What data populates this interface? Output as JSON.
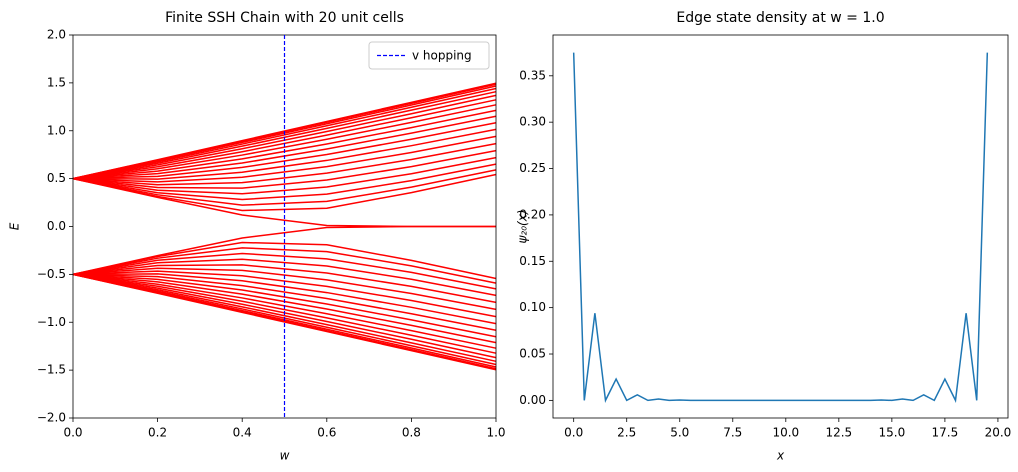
{
  "chart_data": [
    {
      "type": "line",
      "title": "Finite SSH Chain with 20 unit cells",
      "xlabel": "w",
      "ylabel": "E",
      "color": "#ff0000",
      "x": [
        0,
        0.2,
        0.4,
        0.6,
        0.8,
        1.0
      ],
      "xlim": [
        0,
        1
      ],
      "ylim": [
        -2,
        2
      ],
      "xticks": [
        {
          "value": 0,
          "label": "0.0"
        },
        {
          "value": 0.2,
          "label": "0.2"
        },
        {
          "value": 0.4,
          "label": "0.4"
        },
        {
          "value": 0.6,
          "label": "0.6"
        },
        {
          "value": 0.8,
          "label": "0.8"
        },
        {
          "value": 1,
          "label": "1.0"
        }
      ],
      "yticks": [
        {
          "value": -2,
          "label": "−2.0"
        },
        {
          "value": -1.5,
          "label": "−1.5"
        },
        {
          "value": -1,
          "label": "−1.0"
        },
        {
          "value": -0.5,
          "label": "−0.5"
        },
        {
          "value": 0,
          "label": "0.0"
        },
        {
          "value": 0.5,
          "label": "0.5"
        },
        {
          "value": 1,
          "label": "1.0"
        },
        {
          "value": 1.5,
          "label": "1.5"
        },
        {
          "value": 2,
          "label": "2.0"
        }
      ],
      "vline": {
        "x": 0.5,
        "label": "v hopping",
        "color": "#0000ff"
      },
      "legend": "upper right",
      "series": [
        {
          "values": [
            0.5,
            0.698,
            0.897,
            1.097,
            1.297,
            1.496
          ]
        },
        {
          "values": [
            0.5,
            0.694,
            0.89,
            1.088,
            1.286,
            1.485
          ]
        },
        {
          "values": [
            0.5,
            0.686,
            0.878,
            1.073,
            1.269,
            1.467
          ]
        },
        {
          "values": [
            0.5,
            0.675,
            0.861,
            1.052,
            1.245,
            1.441
          ]
        },
        {
          "values": [
            0.5,
            0.661,
            0.839,
            1.025,
            1.215,
            1.408
          ]
        },
        {
          "values": [
            0.5,
            0.644,
            0.812,
            0.992,
            1.178,
            1.369
          ]
        },
        {
          "values": [
            0.5,
            0.624,
            0.781,
            0.954,
            1.136,
            1.323
          ]
        },
        {
          "values": [
            0.5,
            0.603,
            0.746,
            0.911,
            1.087,
            1.271
          ]
        },
        {
          "values": [
            0.5,
            0.578,
            0.706,
            0.862,
            1.033,
            1.213
          ]
        },
        {
          "values": [
            0.5,
            0.552,
            0.663,
            0.809,
            0.975,
            1.151
          ]
        },
        {
          "values": [
            0.5,
            0.524,
            0.617,
            0.752,
            0.911,
            1.084
          ]
        },
        {
          "values": [
            0.5,
            0.495,
            0.567,
            0.69,
            0.844,
            1.014
          ]
        },
        {
          "values": [
            0.5,
            0.466,
            0.514,
            0.625,
            0.773,
            0.941
          ]
        },
        {
          "values": [
            0.5,
            0.436,
            0.458,
            0.557,
            0.7,
            0.866
          ]
        },
        {
          "values": [
            0.5,
            0.407,
            0.401,
            0.486,
            0.625,
            0.792
          ]
        },
        {
          "values": [
            0.5,
            0.379,
            0.342,
            0.412,
            0.551,
            0.719
          ]
        },
        {
          "values": [
            0.5,
            0.353,
            0.282,
            0.338,
            0.479,
            0.651
          ]
        },
        {
          "values": [
            0.5,
            0.331,
            0.223,
            0.263,
            0.411,
            0.591
          ]
        },
        {
          "values": [
            0.5,
            0.314,
            0.167,
            0.191,
            0.354,
            0.543
          ]
        },
        {
          "values": [
            0.5,
            0.304,
            0.12,
            0.01,
            0,
            0
          ]
        },
        {
          "values": [
            -0.5,
            -0.304,
            -0.12,
            -0.01,
            0,
            0
          ]
        },
        {
          "values": [
            -0.5,
            -0.314,
            -0.167,
            -0.191,
            -0.354,
            -0.543
          ]
        },
        {
          "values": [
            -0.5,
            -0.331,
            -0.223,
            -0.263,
            -0.411,
            -0.591
          ]
        },
        {
          "values": [
            -0.5,
            -0.353,
            -0.282,
            -0.338,
            -0.479,
            -0.651
          ]
        },
        {
          "values": [
            -0.5,
            -0.379,
            -0.342,
            -0.412,
            -0.551,
            -0.719
          ]
        },
        {
          "values": [
            -0.5,
            -0.407,
            -0.401,
            -0.486,
            -0.625,
            -0.792
          ]
        },
        {
          "values": [
            -0.5,
            -0.436,
            -0.458,
            -0.557,
            -0.7,
            -0.866
          ]
        },
        {
          "values": [
            -0.5,
            -0.466,
            -0.514,
            -0.625,
            -0.773,
            -0.941
          ]
        },
        {
          "values": [
            -0.5,
            -0.495,
            -0.567,
            -0.69,
            -0.844,
            -1.014
          ]
        },
        {
          "values": [
            -0.5,
            -0.524,
            -0.617,
            -0.752,
            -0.911,
            -1.084
          ]
        },
        {
          "values": [
            -0.5,
            -0.552,
            -0.663,
            -0.809,
            -0.975,
            -1.151
          ]
        },
        {
          "values": [
            -0.5,
            -0.578,
            -0.706,
            -0.862,
            -1.033,
            -1.213
          ]
        },
        {
          "values": [
            -0.5,
            -0.603,
            -0.746,
            -0.911,
            -1.087,
            -1.271
          ]
        },
        {
          "values": [
            -0.5,
            -0.624,
            -0.781,
            -0.954,
            -1.136,
            -1.323
          ]
        },
        {
          "values": [
            -0.5,
            -0.644,
            -0.812,
            -0.992,
            -1.178,
            -1.369
          ]
        },
        {
          "values": [
            -0.5,
            -0.661,
            -0.839,
            -1.025,
            -1.215,
            -1.408
          ]
        },
        {
          "values": [
            -0.5,
            -0.675,
            -0.861,
            -1.052,
            -1.245,
            -1.441
          ]
        },
        {
          "values": [
            -0.5,
            -0.686,
            -0.878,
            -1.073,
            -1.269,
            -1.467
          ]
        },
        {
          "values": [
            -0.5,
            -0.694,
            -0.89,
            -1.088,
            -1.286,
            -1.485
          ]
        },
        {
          "values": [
            -0.5,
            -0.698,
            -0.897,
            -1.097,
            -1.297,
            -1.496
          ]
        }
      ]
    },
    {
      "type": "line",
      "title": "Edge state density at w = 1.0",
      "xlabel": "x",
      "ylabel": "ψ₂₀(x)",
      "color": "#1f77b4",
      "x": [
        0,
        0.5,
        1,
        1.5,
        2,
        2.5,
        3,
        3.5,
        4,
        4.5,
        5,
        5.5,
        6,
        6.5,
        7,
        7.5,
        8,
        8.5,
        9,
        9.5,
        10,
        10.5,
        11,
        11.5,
        12,
        12.5,
        13,
        13.5,
        14,
        14.5,
        15,
        15.5,
        16,
        16.5,
        17,
        17.5,
        18,
        18.5,
        19,
        19.5
      ],
      "xlim": [
        -0.975,
        20.475
      ],
      "ylim": [
        -0.019,
        0.394
      ],
      "xticks": [
        {
          "value": 0,
          "label": "0.0"
        },
        {
          "value": 2.5,
          "label": "2.5"
        },
        {
          "value": 5,
          "label": "5.0"
        },
        {
          "value": 7.5,
          "label": "7.5"
        },
        {
          "value": 10,
          "label": "10.0"
        },
        {
          "value": 12.5,
          "label": "12.5"
        },
        {
          "value": 15,
          "label": "15.0"
        },
        {
          "value": 17.5,
          "label": "17.5"
        },
        {
          "value": 20,
          "label": "20.0"
        }
      ],
      "yticks": [
        {
          "value": 0,
          "label": "0.00"
        },
        {
          "value": 0.05,
          "label": "0.05"
        },
        {
          "value": 0.1,
          "label": "0.10"
        },
        {
          "value": 0.15,
          "label": "0.15"
        },
        {
          "value": 0.2,
          "label": "0.20"
        },
        {
          "value": 0.25,
          "label": "0.25"
        },
        {
          "value": 0.3,
          "label": "0.30"
        },
        {
          "value": 0.35,
          "label": "0.35"
        }
      ],
      "series": [
        {
          "values": [
            0.375,
            0,
            0.094,
            0,
            0.023,
            0,
            0.006,
            0,
            0.0015,
            0,
            0.0004,
            0,
            0,
            0,
            0,
            0,
            0,
            0,
            0,
            0,
            0,
            0,
            0,
            0,
            0,
            0,
            0,
            0,
            0,
            0.0004,
            0,
            0.0015,
            0,
            0.006,
            0,
            0.023,
            0,
            0.094,
            0,
            0.375
          ]
        }
      ]
    }
  ]
}
